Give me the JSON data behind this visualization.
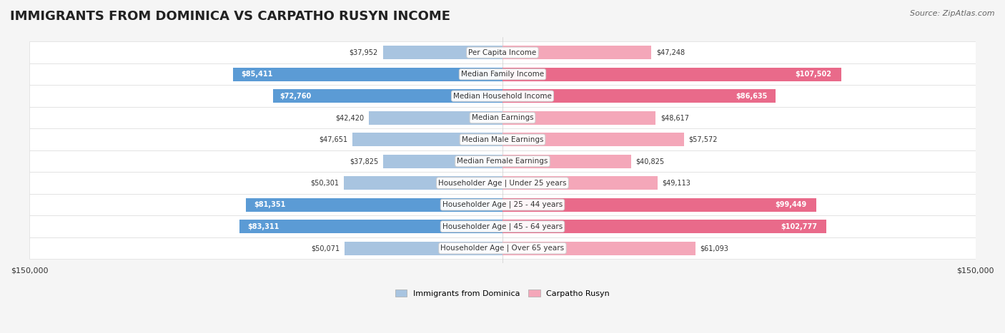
{
  "title": "IMMIGRANTS FROM DOMINICA VS CARPATHO RUSYN INCOME",
  "source": "Source: ZipAtlas.com",
  "categories": [
    "Per Capita Income",
    "Median Family Income",
    "Median Household Income",
    "Median Earnings",
    "Median Male Earnings",
    "Median Female Earnings",
    "Householder Age | Under 25 years",
    "Householder Age | 25 - 44 years",
    "Householder Age | 45 - 64 years",
    "Householder Age | Over 65 years"
  ],
  "dominica_values": [
    37952,
    85411,
    72760,
    42420,
    47651,
    37825,
    50301,
    81351,
    83311,
    50071
  ],
  "rusyn_values": [
    47248,
    107502,
    86635,
    48617,
    57572,
    40825,
    49113,
    99449,
    102777,
    61093
  ],
  "dominica_labels": [
    "$37,952",
    "$85,411",
    "$72,760",
    "$42,420",
    "$47,651",
    "$37,825",
    "$50,301",
    "$81,351",
    "$83,311",
    "$50,071"
  ],
  "rusyn_labels": [
    "$47,248",
    "$107,502",
    "$86,635",
    "$48,617",
    "$57,572",
    "$40,825",
    "$49,113",
    "$99,449",
    "$102,777",
    "$61,093"
  ],
  "dominica_color_light": "#a8c4e0",
  "dominica_color_dark": "#5b9bd5",
  "rusyn_color_light": "#f4a7b9",
  "rusyn_color_dark": "#e96a8a",
  "max_value": 150000,
  "xlabel_left": "$150,000",
  "xlabel_right": "$150,000",
  "legend_dominica": "Immigrants from Dominica",
  "legend_rusyn": "Carpatho Rusyn",
  "bg_color": "#f5f5f5",
  "row_bg": "#ffffff",
  "row_bg_alt": "#f0f0f0"
}
